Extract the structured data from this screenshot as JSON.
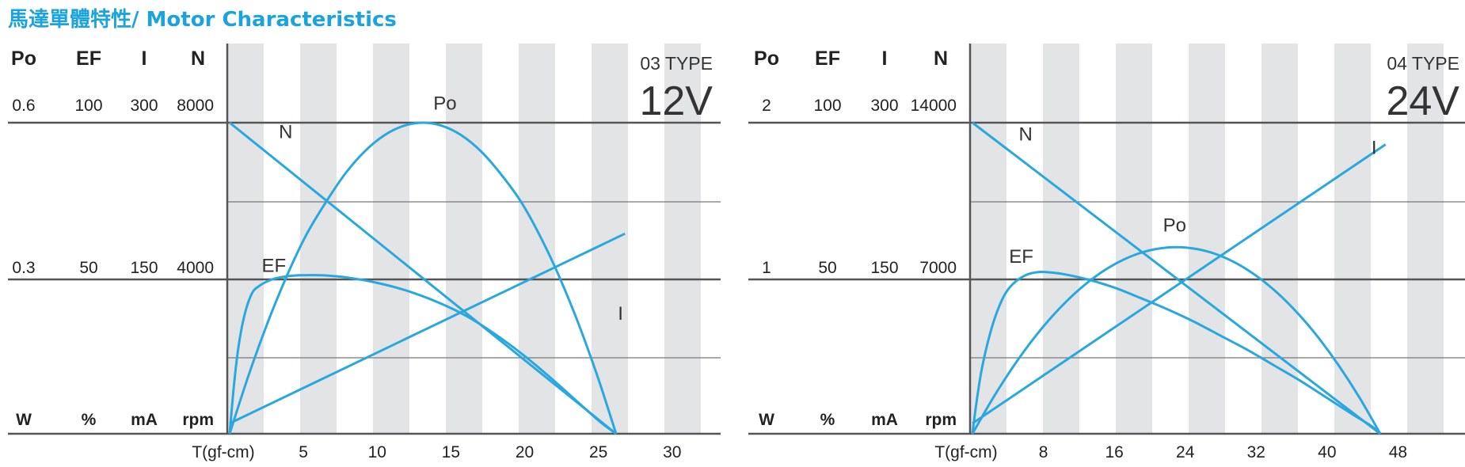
{
  "page_title": "馬達單體特性/ Motor Characteristics",
  "colors": {
    "accent": "#1aa3dc",
    "curve": "#29a8df",
    "stripe": "#e3e4e6",
    "axis": "#555555"
  },
  "chart_data": [
    {
      "type": "line",
      "type_label": "03 TYPE",
      "voltage": "12V",
      "xlabel": "T(gf-cm)",
      "xlim": [
        0,
        28
      ],
      "x_ticks": [
        "5",
        "10",
        "15",
        "20",
        "25",
        "30"
      ],
      "x_tick_values": [
        5,
        10,
        15,
        20,
        25,
        30
      ],
      "axes": [
        {
          "name": "Po",
          "unit": "W",
          "max": 0.6,
          "mid": 0.3,
          "max_label": "0.6",
          "mid_label": "0.3"
        },
        {
          "name": "EF",
          "unit": "%",
          "max": 100,
          "mid": 50,
          "max_label": "100",
          "mid_label": "50"
        },
        {
          "name": "I",
          "unit": "mA",
          "max": 300,
          "mid": 150,
          "max_label": "300",
          "mid_label": "150"
        },
        {
          "name": "N",
          "unit": "rpm",
          "max": 8000,
          "mid": 4000,
          "max_label": "8000",
          "mid_label": "4000"
        }
      ],
      "series": [
        {
          "name": "N",
          "axis": "rpm",
          "x": [
            0,
            26.2
          ],
          "y": [
            8000,
            0
          ],
          "label_at": [
            3.8,
            7600
          ]
        },
        {
          "name": "Po",
          "axis": "W",
          "x": [
            0,
            1.3,
            2.6,
            3.9,
            5.2,
            6.6,
            7.9,
            9.2,
            10.5,
            11.8,
            13.1,
            14.4,
            15.7,
            17.0,
            18.3,
            19.7,
            21.0,
            22.3,
            23.6,
            24.9,
            26.2
          ],
          "y": [
            0,
            0.114,
            0.216,
            0.306,
            0.384,
            0.45,
            0.504,
            0.546,
            0.576,
            0.594,
            0.6,
            0.594,
            0.576,
            0.546,
            0.504,
            0.45,
            0.384,
            0.306,
            0.216,
            0.114,
            0
          ],
          "label_at": [
            14.6,
            0.625
          ]
        },
        {
          "name": "EF",
          "axis": "%",
          "x": [
            0,
            0.3,
            0.6,
            1.0,
            1.5,
            2.0,
            2.8,
            3.6,
            4.5,
            5.5,
            6.5,
            8.0,
            10.0,
            12.0,
            14.0,
            16.0,
            18.0,
            20.0,
            22.0,
            24.0,
            25.2,
            26.2
          ],
          "y": [
            0,
            16,
            28,
            38,
            45,
            47.5,
            49.5,
            50.4,
            50.9,
            51,
            50.9,
            50.2,
            48.5,
            46,
            42.5,
            38,
            32,
            25,
            17,
            8.5,
            3.5,
            0
          ],
          "label_at": [
            3.0,
            52
          ]
        },
        {
          "name": "I",
          "axis": "mA",
          "x": [
            0,
            26.8
          ],
          "y": [
            10,
            193
          ],
          "label_at": [
            26.5,
            110
          ]
        }
      ]
    },
    {
      "type": "line",
      "type_label": "04 TYPE",
      "voltage": "24V",
      "xlabel": "T(gf-cm)",
      "xlim": [
        0,
        52
      ],
      "x_ticks": [
        "8",
        "16",
        "24",
        "32",
        "40",
        "48"
      ],
      "x_tick_values": [
        8,
        16,
        24,
        32,
        40,
        48
      ],
      "axes": [
        {
          "name": "Po",
          "unit": "W",
          "max": 2,
          "mid": 1,
          "max_label": "2",
          "mid_label": "1"
        },
        {
          "name": "EF",
          "unit": "%",
          "max": 100,
          "mid": 50,
          "max_label": "100",
          "mid_label": "50"
        },
        {
          "name": "I",
          "unit": "mA",
          "max": 300,
          "mid": 150,
          "max_label": "300",
          "mid_label": "150"
        },
        {
          "name": "N",
          "unit": "rpm",
          "max": 14000,
          "mid": 7000,
          "max_label": "14000",
          "mid_label": "7000"
        }
      ],
      "series": [
        {
          "name": "N",
          "axis": "rpm",
          "x": [
            0,
            46
          ],
          "y": [
            14000,
            0
          ],
          "label_at": [
            6.0,
            13200
          ]
        },
        {
          "name": "Po",
          "axis": "W",
          "x": [
            0,
            2.3,
            4.6,
            6.9,
            9.2,
            11.5,
            13.8,
            16.1,
            18.4,
            20.7,
            23.0,
            25.3,
            27.6,
            29.9,
            32.2,
            34.5,
            36.8,
            39.1,
            41.4,
            43.7,
            46.0
          ],
          "y": [
            0,
            0.228,
            0.432,
            0.612,
            0.768,
            0.9,
            1.008,
            1.092,
            1.152,
            1.188,
            1.2,
            1.188,
            1.152,
            1.092,
            1.008,
            0.9,
            0.768,
            0.612,
            0.432,
            0.228,
            0
          ],
          "label_at": [
            22.8,
            1.3
          ]
        },
        {
          "name": "EF",
          "axis": "%",
          "x": [
            0,
            0.5,
            1.0,
            1.7,
            2.5,
            3.5,
            4.5,
            6.0,
            7.5,
            9.0,
            10.5,
            13.0,
            16.0,
            19.0,
            22.0,
            25.0,
            28.0,
            31.0,
            34.0,
            37.0,
            40.0,
            43.0,
            45.0,
            46.0
          ],
          "y": [
            0,
            11,
            20,
            29,
            37,
            44,
            48,
            51,
            52,
            51.8,
            51.2,
            49.6,
            47,
            43.6,
            40,
            36,
            31.5,
            27,
            22,
            17,
            11.5,
            6,
            2.5,
            0
          ],
          "label_at": [
            5.5,
            55
          ]
        },
        {
          "name": "I",
          "axis": "mA",
          "x": [
            0,
            46.6
          ],
          "y": [
            10,
            279
          ],
          "label_at": [
            45.3,
            270
          ]
        }
      ]
    }
  ]
}
